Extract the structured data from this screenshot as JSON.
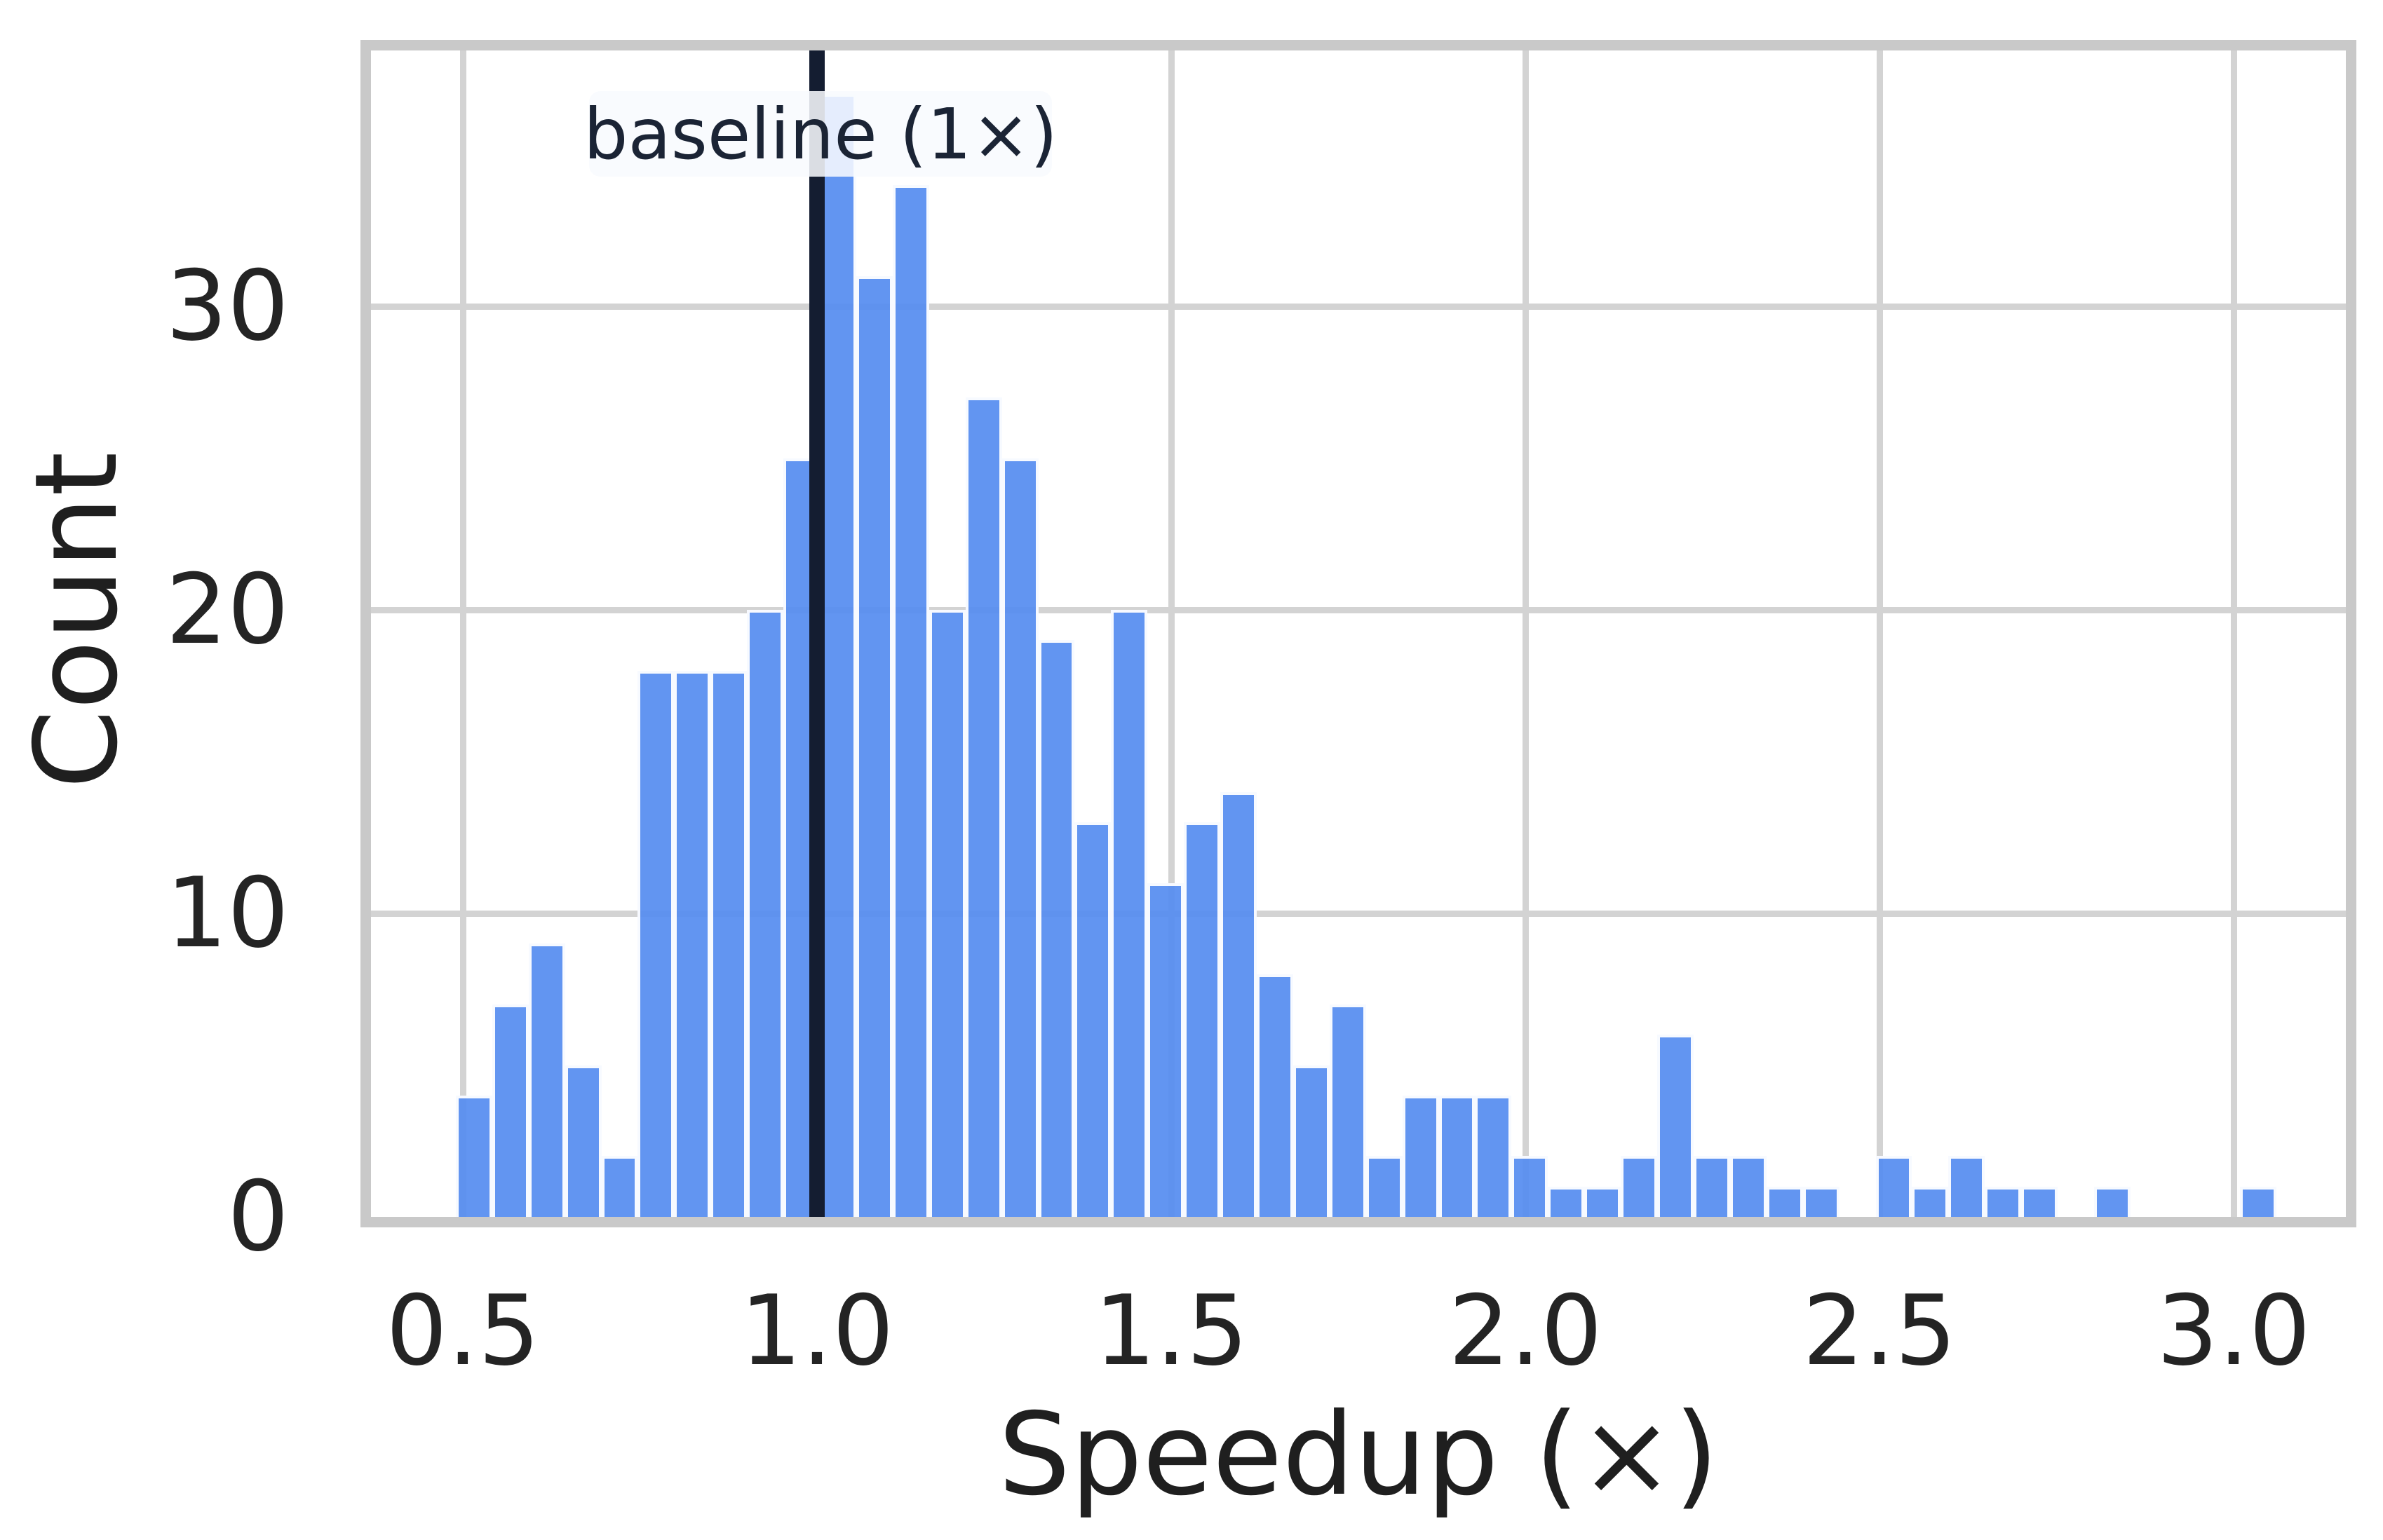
{
  "chart_data": {
    "type": "bar",
    "subtype": "histogram",
    "title": "",
    "xlabel": "Speedup (×)",
    "ylabel": "Count",
    "x_ticks": [
      0.5,
      1.0,
      1.5,
      2.0,
      2.5,
      3.0
    ],
    "x_tick_labels": [
      "0.5",
      "1.0",
      "1.5",
      "2.0",
      "2.5",
      "3.0"
    ],
    "y_ticks": [
      0,
      10,
      20,
      30
    ],
    "y_tick_labels": [
      "0",
      "10",
      "20",
      "30"
    ],
    "xlim": [
      0.37,
      3.16
    ],
    "ylim": [
      0,
      38.5
    ],
    "grid": true,
    "legend_position": "none",
    "bin_start": 0.49,
    "bin_width": 0.0514,
    "counts": [
      4,
      7,
      9,
      5,
      2,
      18,
      18,
      18,
      20,
      25,
      37,
      31,
      34,
      20,
      27,
      25,
      19,
      13,
      20,
      11,
      13,
      14,
      8,
      5,
      7,
      2,
      4,
      4,
      4,
      2,
      1,
      1,
      2,
      6,
      2,
      2,
      1,
      1,
      0,
      2,
      1,
      2,
      1,
      1,
      0,
      1,
      0,
      0,
      0,
      1
    ],
    "baseline": {
      "x": 1.0,
      "label": "baseline (1×)"
    },
    "colors": {
      "bar_fill": "rgba(86,141,240,0.93)",
      "bar_edge": "rgba(255,255,255,0.95)",
      "baseline_line": "#141d31",
      "gridline": "#d3d3d3",
      "spine": "#c9c9c9",
      "tick_text": "#242424",
      "axis_label_text": "#1f1f1f",
      "annotation_text": "#1b2435",
      "annotation_bg": "rgba(248,250,254,0.87)"
    }
  }
}
